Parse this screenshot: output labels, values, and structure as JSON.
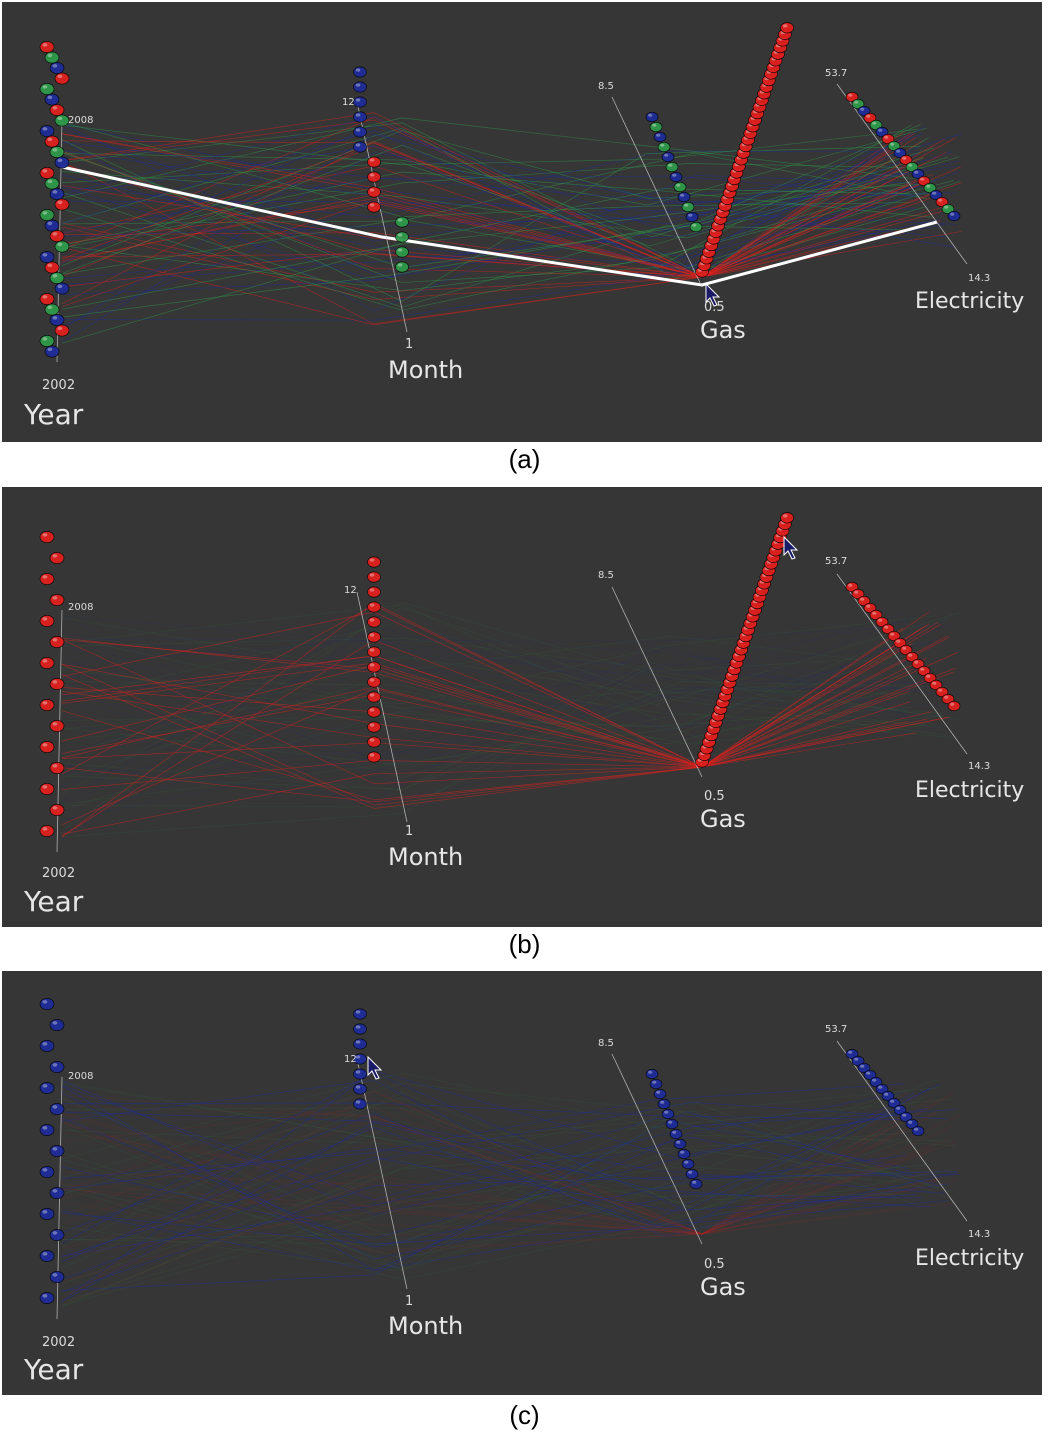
{
  "chart_data": [
    {
      "type": "parallel-coordinates-3d",
      "panel_caption": "(a)",
      "highlight": "all",
      "axes": [
        {
          "name": "Year",
          "min_label": "2002",
          "max_label": "2008"
        },
        {
          "name": "Month",
          "min_label": "1",
          "max_label": "12"
        },
        {
          "name": "Gas",
          "min_label": "0.5",
          "max_label": "8.5"
        },
        {
          "name": "Electricity",
          "min_label": "14.3",
          "max_label": "53.7"
        }
      ],
      "series_colors": {
        "red": "#e0201e",
        "green": "#2e9a4a",
        "blue": "#1e2c9a",
        "selected": "#ffffff"
      }
    },
    {
      "type": "parallel-coordinates-3d",
      "panel_caption": "(b)",
      "highlight": "red",
      "axes": [
        {
          "name": "Year",
          "min_label": "2002",
          "max_label": "2008"
        },
        {
          "name": "Month",
          "min_label": "1",
          "max_label": "12"
        },
        {
          "name": "Gas",
          "min_label": "0.5",
          "max_label": "8.5"
        },
        {
          "name": "Electricity",
          "min_label": "14.3",
          "max_label": "53.7"
        }
      ],
      "series_colors": {
        "red": "#e0201e",
        "green": "#2e9a4a",
        "blue": "#1e2c9a"
      }
    },
    {
      "type": "parallel-coordinates-3d",
      "panel_caption": "(c)",
      "highlight": "blue",
      "axes": [
        {
          "name": "Year",
          "min_label": "2002",
          "max_label": "2008"
        },
        {
          "name": "Month",
          "min_label": "1",
          "max_label": "12"
        },
        {
          "name": "Gas",
          "min_label": "0.5",
          "max_label": "8.5"
        },
        {
          "name": "Electricity",
          "min_label": "14.3",
          "max_label": "53.7"
        }
      ],
      "series_colors": {
        "red": "#e0201e",
        "green": "#2e9a4a",
        "blue": "#1e2c9a"
      }
    }
  ]
}
